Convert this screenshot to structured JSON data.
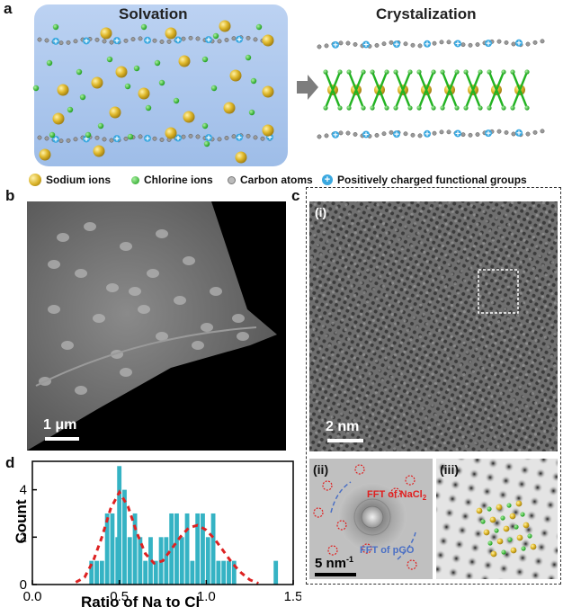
{
  "panel_labels": {
    "a": "a",
    "b": "b",
    "c": "c",
    "d": "d"
  },
  "panel_a": {
    "left_title": "Solvation",
    "right_title": "Crystalization",
    "legend": [
      {
        "label": "Sodium ions",
        "color": "#d9b227"
      },
      {
        "label": "Chlorine ions",
        "color": "#2fbf2f"
      },
      {
        "label": "Carbon atoms",
        "color": "#9a9a9a"
      },
      {
        "label": "Positively charged functional groups",
        "color": "#3aa8e0"
      }
    ]
  },
  "panel_b": {
    "scalebar": "1 μm"
  },
  "panel_c": {
    "sub_i": "(i)",
    "sub_ii": "(ii)",
    "sub_iii": "(iii)",
    "scalebar_i": "2 nm",
    "scalebar_ii": "5 nm",
    "scalebar_ii_sup": "-1",
    "fft_nacl": "FFT of NaCl",
    "fft_nacl_sub": "2",
    "fft_pgo": "FFT of pGO"
  },
  "chart_data": {
    "type": "bar",
    "xlabel": "Ratio of Na to Cl",
    "ylabel": "Count",
    "xlim": [
      0,
      1.5
    ],
    "ylim": [
      0,
      5.2
    ],
    "xticks": [
      "0.0",
      "0.5",
      "1.0",
      "1.5"
    ],
    "yticks": [
      "0",
      "2",
      "4"
    ],
    "bar_color": "#35b3c4",
    "fit_color": "#dd2222",
    "bars": [
      {
        "x": 0.34,
        "count": 1
      },
      {
        "x": 0.37,
        "count": 1
      },
      {
        "x": 0.4,
        "count": 1
      },
      {
        "x": 0.43,
        "count": 3
      },
      {
        "x": 0.46,
        "count": 3
      },
      {
        "x": 0.49,
        "count": 2
      },
      {
        "x": 0.5,
        "count": 5
      },
      {
        "x": 0.53,
        "count": 4
      },
      {
        "x": 0.56,
        "count": 2
      },
      {
        "x": 0.59,
        "count": 3
      },
      {
        "x": 0.62,
        "count": 2
      },
      {
        "x": 0.65,
        "count": 1
      },
      {
        "x": 0.68,
        "count": 2
      },
      {
        "x": 0.71,
        "count": 1
      },
      {
        "x": 0.74,
        "count": 2
      },
      {
        "x": 0.77,
        "count": 2
      },
      {
        "x": 0.8,
        "count": 3
      },
      {
        "x": 0.83,
        "count": 3
      },
      {
        "x": 0.86,
        "count": 2
      },
      {
        "x": 0.89,
        "count": 3
      },
      {
        "x": 0.92,
        "count": 1
      },
      {
        "x": 0.95,
        "count": 3
      },
      {
        "x": 0.98,
        "count": 3
      },
      {
        "x": 1.01,
        "count": 2
      },
      {
        "x": 1.04,
        "count": 3
      },
      {
        "x": 1.07,
        "count": 1
      },
      {
        "x": 1.1,
        "count": 1
      },
      {
        "x": 1.13,
        "count": 1
      },
      {
        "x": 1.16,
        "count": 1
      },
      {
        "x": 1.4,
        "count": 1
      }
    ],
    "fit_x": [
      0.25,
      0.3,
      0.35,
      0.4,
      0.45,
      0.5,
      0.55,
      0.6,
      0.65,
      0.7,
      0.75,
      0.8,
      0.85,
      0.9,
      0.95,
      1.0,
      1.05,
      1.1,
      1.15,
      1.2,
      1.25,
      1.3
    ],
    "fit_y": [
      0.1,
      0.3,
      1.0,
      2.0,
      3.2,
      3.9,
      3.3,
      2.2,
      1.3,
      0.9,
      1.0,
      1.5,
      2.0,
      2.4,
      2.5,
      2.3,
      1.9,
      1.4,
      0.9,
      0.5,
      0.2,
      0.05
    ]
  }
}
